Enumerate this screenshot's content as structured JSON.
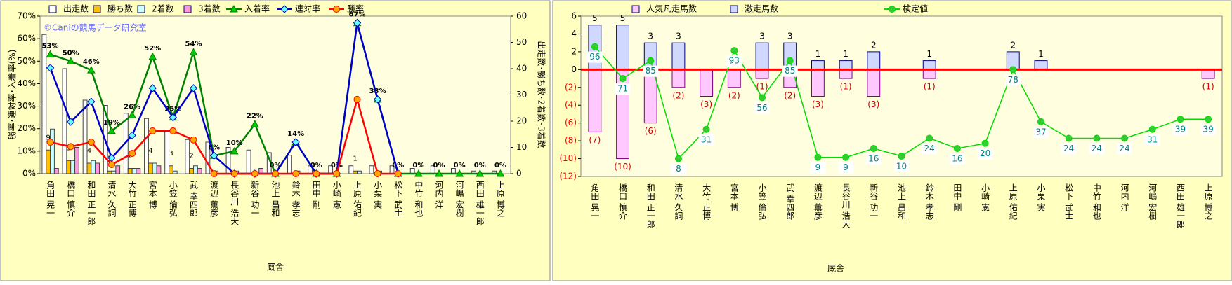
{
  "chart_data": [
    {
      "type": "combo",
      "annotation": "©Caniの競馬データ研究室",
      "xlabel": "厩舎",
      "ylabel": "勝率･連対率･入着率(%)",
      "y2label": "出走数･勝ち数･2着数･3着数",
      "bar_layout": "cluster",
      "categories": [
        "角田 晃一",
        "橋口 慎介",
        "和田 正一郎",
        "清水 久詞",
        "大竹 正博",
        "宮本 博",
        "小笠 倫弘",
        "武 幸四郎",
        "渡辺 薫彦",
        "長谷川 浩大",
        "新谷 功一",
        "池上 昌和",
        "鈴木 孝志",
        "田中 剛",
        "小崎 憲",
        "上原 佑紀",
        "小栗 実",
        "松下 武士",
        "中竹 和也",
        "河内 洋",
        "河嶋 宏樹",
        "西田 雄一郎",
        "上原 博之"
      ],
      "ylim": [
        0,
        70
      ],
      "yticks": [
        {
          "value": 0,
          "label": "0%"
        },
        {
          "value": 10,
          "label": "10%"
        },
        {
          "value": 20,
          "label": "20%"
        },
        {
          "value": 30,
          "label": "30%"
        },
        {
          "value": 40,
          "label": "40%"
        },
        {
          "value": 50,
          "label": "50%"
        },
        {
          "value": 60,
          "label": "60%"
        },
        {
          "value": 70,
          "label": "70%"
        }
      ],
      "y2lim": [
        0,
        60
      ],
      "y2ticks": [
        0,
        10,
        20,
        30,
        40,
        50,
        60
      ],
      "series": [
        {
          "name": "出走数",
          "kind": "bar",
          "axis": "y2",
          "color": "#ffffff",
          "values": [
            53,
            40,
            28,
            26,
            23,
            21,
            16,
            13,
            12,
            10,
            9,
            8,
            7,
            3,
            3,
            3,
            3,
            3,
            2,
            3,
            2,
            1,
            1
          ]
        },
        {
          "name": "勝ち数",
          "kind": "bar",
          "axis": "y2",
          "color": "#ffc000",
          "show_labels": true,
          "values": [
            9,
            5,
            4,
            1,
            2,
            4,
            3,
            2,
            0,
            0,
            0,
            0,
            0,
            0,
            0,
            1,
            0,
            0,
            0,
            0,
            0,
            0,
            0
          ]
        },
        {
          "name": "2着数",
          "kind": "bar",
          "axis": "y2",
          "color": "#ccffff",
          "values": [
            17,
            5,
            5,
            1,
            2,
            4,
            1,
            3,
            1,
            1,
            0,
            0,
            1,
            0,
            0,
            1,
            1,
            0,
            0,
            0,
            0,
            0,
            0
          ]
        },
        {
          "name": "3着数",
          "kind": "bar",
          "axis": "y2",
          "color": "#ff99dd",
          "values": [
            2,
            10,
            4,
            3,
            2,
            3,
            0,
            2,
            0,
            0,
            2,
            0,
            0,
            0,
            0,
            0,
            0,
            0,
            0,
            0,
            0,
            0,
            0
          ]
        },
        {
          "name": "入着率",
          "kind": "line",
          "color": "#008000",
          "marker": "triangle",
          "marker_color": "#00cc00",
          "values": [
            53,
            50,
            46,
            19,
            26,
            52,
            25,
            54,
            8,
            10,
            22,
            0,
            14,
            0,
            0,
            67,
            33,
            0,
            0,
            0,
            0,
            0,
            0
          ],
          "value_labels": [
            "53%",
            "50%",
            "46%",
            "19%",
            "26%",
            "52%",
            "25%",
            "54%",
            "8%",
            "10%",
            "22%",
            "0%",
            "14%",
            "0%",
            "0%",
            "67%",
            "33%",
            "0%",
            "0%",
            "0%",
            "0%",
            "0%",
            "0%"
          ]
        },
        {
          "name": "連対率",
          "kind": "line",
          "color": "#0000cc",
          "marker": "diamond",
          "marker_color": "#66ffff",
          "values": [
            47,
            23,
            32,
            7,
            17,
            38,
            25,
            38,
            8,
            0,
            0,
            0,
            14,
            0,
            0,
            67,
            33,
            0,
            null,
            null,
            null,
            null,
            null
          ]
        },
        {
          "name": "勝率",
          "kind": "line",
          "color": "#ff0000",
          "marker": "circle",
          "marker_color": "#ffa500",
          "values": [
            14,
            12,
            14,
            4,
            9,
            19,
            19,
            15,
            0,
            0,
            0,
            0,
            0,
            0,
            0,
            33,
            0,
            0,
            null,
            null,
            null,
            null,
            null
          ]
        }
      ]
    },
    {
      "type": "combo",
      "xlabel": "厩舎",
      "bar_layout": "overlap",
      "zero_line_color": "#ff0000",
      "categories": [
        "角田 晃一",
        "橋口 慎介",
        "和田 正一郎",
        "清水 久詞",
        "大竹 正博",
        "宮本 博",
        "小笠 倫弘",
        "武 幸四郎",
        "渡辺 薫彦",
        "長谷川 浩大",
        "新谷 功一",
        "池上 昌和",
        "鈴木 孝志",
        "田中 剛",
        "小崎 憲",
        "上原 佑紀",
        "小栗 実",
        "松下 武士",
        "中竹 和也",
        "河内 洋",
        "河嶋 宏樹",
        "西田 雄一郎",
        "上原 博之"
      ],
      "ylim": [
        -12,
        6
      ],
      "yticks": [
        {
          "value": -12,
          "label": "(12)"
        },
        {
          "value": -10,
          "label": "(10)"
        },
        {
          "value": -8,
          "label": "(8)"
        },
        {
          "value": -6,
          "label": "(6)"
        },
        {
          "value": -4,
          "label": "(4)"
        },
        {
          "value": -2,
          "label": "(2)"
        },
        0,
        2,
        4,
        6
      ],
      "y2lim": [
        -6,
        120
      ],
      "series": [
        {
          "name": "人気凡走馬数",
          "kind": "bar",
          "color": "#ffc8ff",
          "values": [
            -7,
            -10,
            -6,
            -2,
            -3,
            -2,
            -1,
            -2,
            -3,
            -1,
            -3,
            0,
            -1,
            0,
            0,
            0,
            0,
            0,
            0,
            0,
            0,
            0,
            -1
          ],
          "value_labels": [
            "(7)",
            "(10)",
            "(6)",
            "(2)",
            "(3)",
            "(2)",
            "(1)",
            "(2)",
            "(3)",
            "(1)",
            "(3)",
            null,
            "(1)",
            null,
            null,
            null,
            null,
            null,
            null,
            null,
            null,
            null,
            "(1)"
          ]
        },
        {
          "name": "激走馬数",
          "kind": "bar",
          "color": "#d0d8ff",
          "show_labels": true,
          "values": [
            5,
            5,
            3,
            3,
            0,
            0,
            3,
            3,
            1,
            1,
            2,
            0,
            1,
            0,
            0,
            2,
            1,
            0,
            0,
            0,
            0,
            0,
            0
          ]
        },
        {
          "name": "検定値",
          "kind": "line",
          "axis": "y2",
          "color": "#00dd00",
          "marker": "circle",
          "marker_color": "#33cc33",
          "boxed_labels": true,
          "values": [
            96,
            71,
            85,
            8,
            31,
            93,
            56,
            85,
            9,
            9,
            16,
            10,
            24,
            16,
            20,
            78,
            37,
            24,
            24,
            24,
            31,
            39,
            39
          ]
        }
      ]
    }
  ]
}
